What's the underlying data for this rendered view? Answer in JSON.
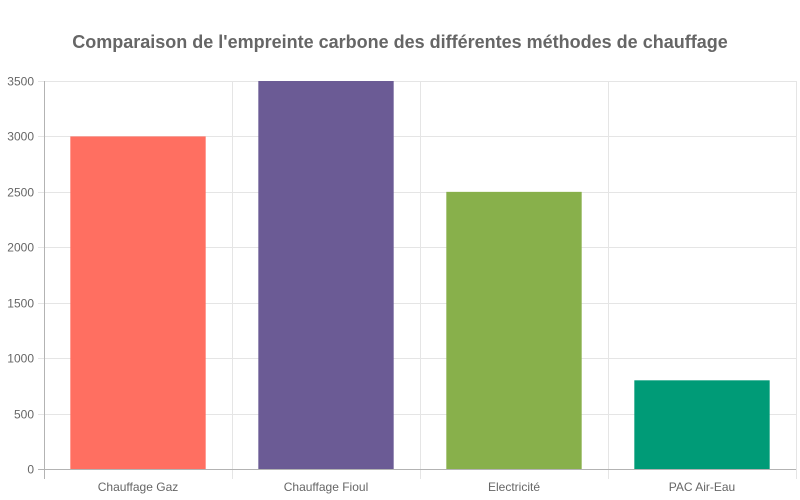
{
  "chart_data": {
    "type": "bar",
    "title": "Comparaison de l'empreinte carbone des différentes méthodes de chauffage",
    "xlabel": "",
    "ylabel": "",
    "categories": [
      "Chauffage Gaz",
      "Chauffage Fioul",
      "Electricité",
      "PAC Air-Eau"
    ],
    "values": [
      3000,
      3500,
      2500,
      800
    ],
    "colors": [
      "#ff6f61",
      "#6b5b95",
      "#88b04b",
      "#009b77"
    ],
    "ylim": [
      0,
      3500
    ],
    "yticks": [
      0,
      500,
      1000,
      1500,
      2000,
      2500,
      3000,
      3500
    ],
    "grid": true,
    "legend": "none"
  }
}
